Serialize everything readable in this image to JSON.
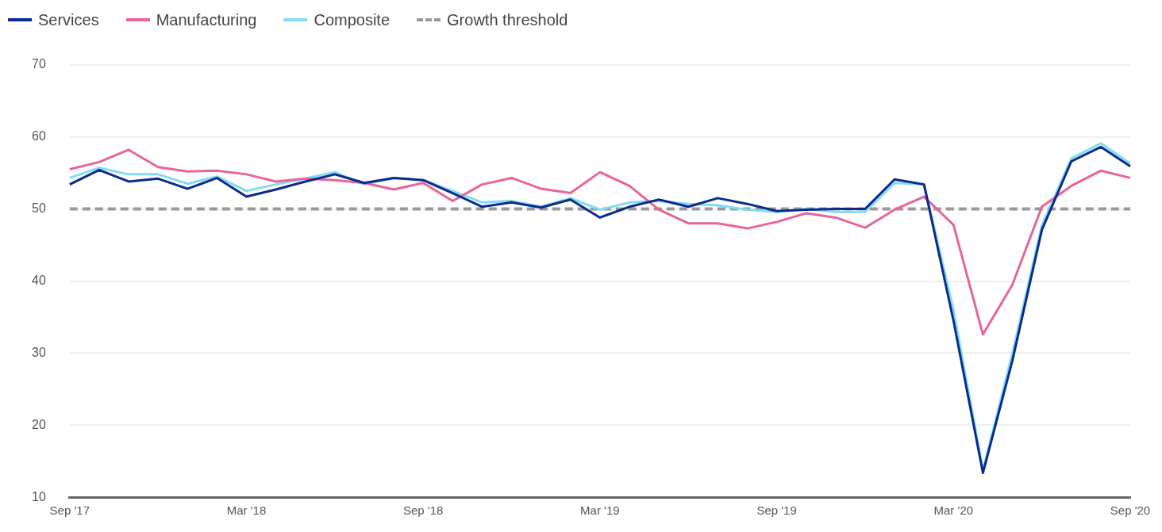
{
  "chart_data": {
    "type": "line",
    "categories": [
      "Sep '17",
      null,
      null,
      null,
      null,
      null,
      "Mar '18",
      null,
      null,
      null,
      null,
      null,
      "Sep '18",
      null,
      null,
      null,
      null,
      null,
      "Mar '19",
      null,
      null,
      null,
      null,
      null,
      "Sep '19",
      null,
      null,
      null,
      null,
      null,
      "Mar '20",
      null,
      null,
      null,
      null,
      null,
      "Sep '20"
    ],
    "series": [
      {
        "name": "Services",
        "color": "#0a2a8c",
        "values": [
          53.4,
          55.4,
          53.8,
          54.2,
          52.8,
          54.3,
          51.7,
          52.7,
          53.8,
          54.8,
          53.6,
          54.3,
          54.0,
          52.2,
          50.3,
          50.9,
          50.2,
          51.3,
          48.8,
          50.3,
          51.3,
          50.3,
          51.5,
          50.7,
          49.7,
          49.9,
          50.0,
          50.0,
          54.1,
          53.4,
          34.5,
          13.4,
          29.0,
          47.1,
          56.6,
          58.6,
          55.9
        ]
      },
      {
        "name": "Manufacturing",
        "color": "#e8649a",
        "values": [
          55.5,
          56.5,
          58.2,
          55.8,
          55.2,
          55.3,
          54.8,
          53.8,
          54.2,
          54.0,
          53.6,
          52.7,
          53.6,
          51.1,
          53.4,
          54.3,
          52.8,
          52.2,
          55.1,
          53.2,
          49.9,
          48.0,
          48.0,
          47.3,
          48.2,
          49.4,
          48.8,
          47.4,
          49.9,
          51.7,
          47.8,
          32.6,
          39.5,
          50.3,
          53.2,
          55.3,
          54.3
        ]
      },
      {
        "name": "Composite",
        "color": "#80dcf0",
        "values": [
          54.3,
          55.7,
          54.8,
          54.8,
          53.5,
          54.5,
          52.5,
          53.4,
          54.2,
          55.1,
          53.4,
          54.3,
          54.0,
          52.5,
          50.9,
          51.1,
          50.3,
          51.5,
          49.9,
          50.9,
          51.1,
          50.7,
          50.5,
          49.9,
          49.6,
          50.0,
          49.6,
          49.6,
          53.6,
          53.4,
          36.0,
          13.8,
          30.0,
          47.7,
          57.0,
          59.1,
          56.3
        ]
      }
    ],
    "ylim": [
      10,
      70
    ],
    "yticks": [
      10,
      20,
      30,
      40,
      50,
      60,
      70
    ],
    "ref_lines": [
      {
        "axis": "y",
        "value": 50,
        "label": "Growth threshold",
        "color": "#999999",
        "line_style": "dashed"
      }
    ],
    "grid": "y",
    "legend": "top left",
    "marker": "none",
    "line_style": "solid"
  }
}
